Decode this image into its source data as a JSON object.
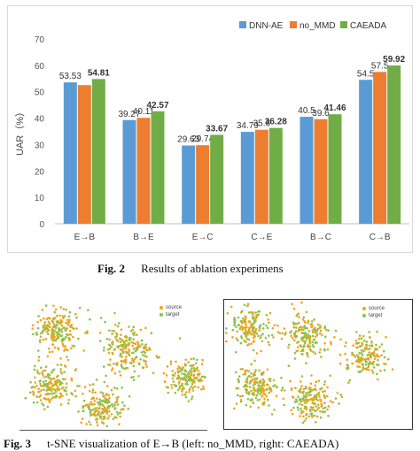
{
  "chart_data": {
    "type": "bar",
    "categories": [
      "E→B",
      "B→E",
      "E→C",
      "C→E",
      "B→C",
      "C→B"
    ],
    "series": [
      {
        "name": "DNN-AE",
        "color": "#5b9bd5",
        "values": [
          53.53,
          39.27,
          29.63,
          34.79,
          40.5,
          54.5
        ]
      },
      {
        "name": "no_MMD",
        "color": "#ed7d31",
        "values": [
          52.5,
          40.11,
          29.74,
          35.6,
          39.6,
          57.5
        ]
      },
      {
        "name": "CAEADA",
        "color": "#70ad47",
        "values": [
          54.81,
          42.57,
          33.67,
          36.28,
          41.46,
          59.92
        ]
      }
    ],
    "data_labels": [
      [
        "53.53",
        "39.27",
        "29.63",
        "34.79",
        "40.5",
        "54.5"
      ],
      [
        "",
        "40.11",
        "29.74",
        "35.6",
        "39.6",
        "57.5"
      ],
      [
        "54.81",
        "42.57",
        "33.67",
        "36.28",
        "41.46",
        "59.92"
      ]
    ],
    "bold_series": "CAEADA",
    "ylabel": "UAR（%）",
    "xlabel": "",
    "ylim": [
      0,
      70
    ],
    "yticks": [
      "0",
      "10",
      "20",
      "30",
      "40",
      "50",
      "60",
      "70"
    ],
    "legend_position": "top-right",
    "grid": false
  },
  "captions": {
    "fig2_label": "Fig. 2",
    "fig2_text": "Results of ablation experimens",
    "fig3_label": "Fig. 3",
    "fig3_text": "t-SNE visualization of E→B (left: no_MMD, right: CAEADA)"
  },
  "tsne": {
    "legend_source": "source",
    "legend_target": "target",
    "source_color": "#f5a31a",
    "target_color": "#8bc34a"
  }
}
